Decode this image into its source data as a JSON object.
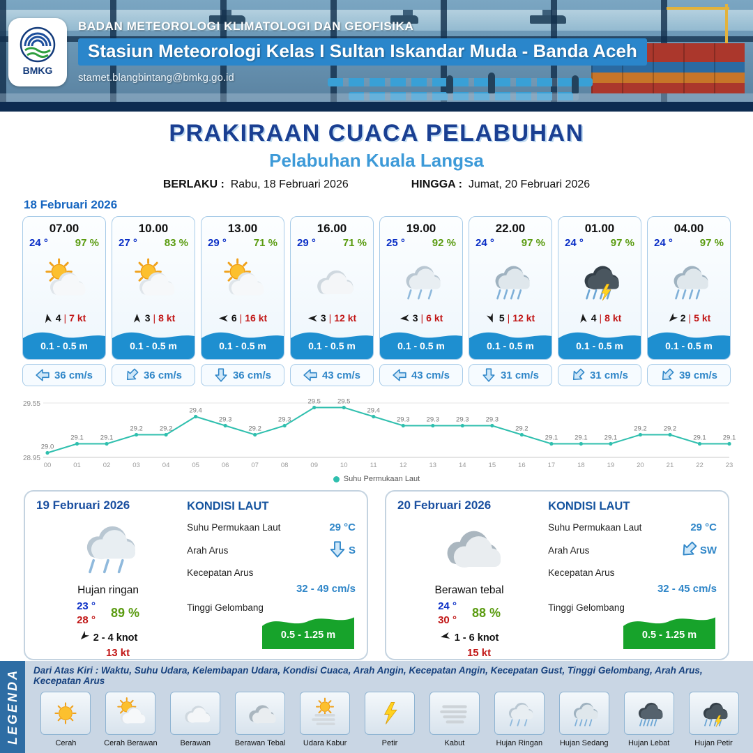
{
  "header": {
    "agency": "BADAN METEOROLOGI KLIMATOLOGI DAN GEOFISIKA",
    "station": "Stasiun Meteorologi Kelas I Sultan Iskandar Muda - Banda Aceh",
    "email": "stamet.blangbintang@bmkg.go.id",
    "logo_text": "BMKG"
  },
  "title": {
    "main": "PRAKIRAAN CUACA PELABUHAN",
    "subtitle": "Pelabuhan Kuala Langsa",
    "berlaku_label": "BERLAKU :",
    "berlaku_value": "Rabu, 18 Februari 2026",
    "hingga_label": "HINGGA :",
    "hingga_value": "Jumat, 20 Februari 2026"
  },
  "forecast_date": "18 Februari 2026",
  "forecast_cards": [
    {
      "time": "07.00",
      "temp": "24 °",
      "humidity": "97 %",
      "icon": "cerah-berawan",
      "wind_dir_deg": 350,
      "wind_speed": "4",
      "wind_gust": "7 kt",
      "wave": "0.1 - 0.5 m",
      "current_dir_deg": 270,
      "current_speed": "36 cm/s"
    },
    {
      "time": "10.00",
      "temp": "27 °",
      "humidity": "83 %",
      "icon": "cerah-berawan",
      "wind_dir_deg": 0,
      "wind_speed": "3",
      "wind_gust": "8 kt",
      "wave": "0.1 - 0.5 m",
      "current_dir_deg": 225,
      "current_speed": "36 cm/s"
    },
    {
      "time": "13.00",
      "temp": "29 °",
      "humidity": "71 %",
      "icon": "cerah-berawan",
      "wind_dir_deg": 270,
      "wind_speed": "6",
      "wind_gust": "16 kt",
      "wave": "0.1 - 0.5 m",
      "current_dir_deg": 180,
      "current_speed": "36 cm/s"
    },
    {
      "time": "16.00",
      "temp": "29 °",
      "humidity": "71 %",
      "icon": "berawan",
      "wind_dir_deg": 270,
      "wind_speed": "3",
      "wind_gust": "12 kt",
      "wave": "0.1 - 0.5 m",
      "current_dir_deg": 270,
      "current_speed": "43 cm/s"
    },
    {
      "time": "19.00",
      "temp": "25 °",
      "humidity": "92 %",
      "icon": "hujan-ringan",
      "wind_dir_deg": 265,
      "wind_speed": "3",
      "wind_gust": "6 kt",
      "wave": "0.1 - 0.5 m",
      "current_dir_deg": 270,
      "current_speed": "43 cm/s"
    },
    {
      "time": "22.00",
      "temp": "24 °",
      "humidity": "97 %",
      "icon": "hujan-sedang",
      "wind_dir_deg": 160,
      "wind_speed": "5",
      "wind_gust": "12 kt",
      "wave": "0.1 - 0.5 m",
      "current_dir_deg": 180,
      "current_speed": "31 cm/s"
    },
    {
      "time": "01.00",
      "temp": "24 °",
      "humidity": "97 %",
      "icon": "hujan-petir",
      "wind_dir_deg": 355,
      "wind_speed": "4",
      "wind_gust": "8 kt",
      "wave": "0.1 - 0.5 m",
      "current_dir_deg": 225,
      "current_speed": "31 cm/s"
    },
    {
      "time": "04.00",
      "temp": "24 °",
      "humidity": "97 %",
      "icon": "hujan-sedang",
      "wind_dir_deg": 225,
      "wind_speed": "2",
      "wind_gust": "5 kt",
      "wave": "0.1 - 0.5 m",
      "current_dir_deg": 225,
      "current_speed": "39 cm/s"
    }
  ],
  "chart_data": {
    "type": "line",
    "series": [
      {
        "name": "Suhu Permukaan Laut",
        "values": [
          29.0,
          29.1,
          29.1,
          29.2,
          29.2,
          29.4,
          29.3,
          29.2,
          29.3,
          29.5,
          29.5,
          29.4,
          29.3,
          29.3,
          29.3,
          29.3,
          29.2,
          29.1,
          29.1,
          29.1,
          29.2,
          29.2,
          29.1,
          29.1
        ]
      }
    ],
    "x_labels": [
      "00",
      "01",
      "02",
      "03",
      "04",
      "05",
      "06",
      "07",
      "08",
      "09",
      "10",
      "11",
      "12",
      "13",
      "14",
      "15",
      "16",
      "17",
      "18",
      "19",
      "20",
      "21",
      "22",
      "23"
    ],
    "ylim": [
      28.95,
      29.55
    ],
    "y_ticks": [
      "29.55",
      "28.95"
    ],
    "legend": "Suhu Permukaan Laut",
    "line_color": "#2fbfae",
    "xlabel": "",
    "ylabel": "",
    "title": ""
  },
  "day_cards": [
    {
      "date": "19 Februari 2026",
      "icon": "hujan-ringan",
      "condition": "Hujan ringan",
      "temp_night": "23 °",
      "temp_day": "28 °",
      "humidity": "89 %",
      "wind_dir_deg": 225,
      "wind_range": "2  - 4 knot",
      "gust": "13 kt",
      "sea": {
        "title": "KONDISI LAUT",
        "sst_label": "Suhu Permukaan Laut",
        "sst": "29 °C",
        "dir_label": "Arah Arus",
        "dir": "S",
        "dir_deg": 180,
        "speed_label": "Kecepatan Arus",
        "speed": "32  - 49 cm/s",
        "wave_label": "Tinggi Gelombang",
        "wave": "0.5 - 1.25 m"
      }
    },
    {
      "date": "20 Februari 2026",
      "icon": "berawan-tebal",
      "condition": "Berawan tebal",
      "temp_night": "24 °",
      "temp_day": "30 °",
      "humidity": "88 %",
      "wind_dir_deg": 260,
      "wind_range": "1  - 6 knot",
      "gust": "15 kt",
      "sea": {
        "title": "KONDISI LAUT",
        "sst_label": "Suhu Permukaan Laut",
        "sst": "29 °C",
        "dir_label": "Arah Arus",
        "dir": "SW",
        "dir_deg": 225,
        "speed_label": "Kecepatan Arus",
        "speed": "32  - 45 cm/s",
        "wave_label": "Tinggi Gelombang",
        "wave": "0.5 - 1.25 m"
      }
    }
  ],
  "legend": {
    "label": "LEGENDA",
    "description": "Dari Atas Kiri : Waktu, Suhu Udara, Kelembapan Udara, Kondisi Cuaca, Arah Angin, Kecepatan Angin, Kecepatan Gust, Tinggi Gelombang, Arah Arus, Kecepatan Arus",
    "items": [
      {
        "label": "Cerah",
        "icon": "cerah"
      },
      {
        "label": "Cerah Berawan",
        "icon": "cerah-berawan"
      },
      {
        "label": "Berawan",
        "icon": "berawan"
      },
      {
        "label": "Berawan Tebal",
        "icon": "berawan-tebal"
      },
      {
        "label": "Udara Kabur",
        "icon": "udara-kabur"
      },
      {
        "label": "Petir",
        "icon": "petir"
      },
      {
        "label": "Kabut",
        "icon": "kabut"
      },
      {
        "label": "Hujan Ringan",
        "icon": "hujan-ringan"
      },
      {
        "label": "Hujan Sedang",
        "icon": "hujan-sedang"
      },
      {
        "label": "Hujan Lebat",
        "icon": "hujan-lebat"
      },
      {
        "label": "Hujan Petir",
        "icon": "hujan-petir"
      }
    ]
  },
  "colors": {
    "title_blue": "#1a3f92",
    "subtitle_blue": "#3d9ad8",
    "temp_blue": "#0a2ec6",
    "humidity_green": "#5a9b10",
    "gust_red": "#c11616",
    "current_blue": "#2f86c8",
    "wave_blue": "#1e8fd0",
    "wave_green": "#17a32b",
    "chart_teal": "#2fbfae",
    "legend_bar_blue": "#2e6da4"
  }
}
